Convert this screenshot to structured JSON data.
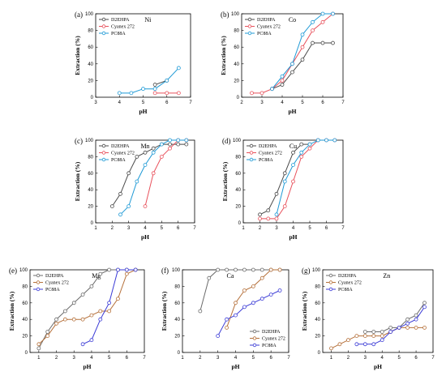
{
  "colors": {
    "D2EHPA": "#4a4a4a",
    "Cyanex 272": "#e8505b",
    "PC88A": "#1f9ad6"
  },
  "chart_data": [
    {
      "id": "ni",
      "panel": "(a)",
      "label": "Ni",
      "type": "line",
      "xlabel": "pH",
      "ylabel": "Extraction (%)",
      "xlim": [
        3,
        7
      ],
      "ylim": [
        0,
        100
      ],
      "xticks": [
        3,
        4,
        5,
        6,
        7
      ],
      "yticks": [
        0,
        20,
        40,
        60,
        80,
        100
      ],
      "series": [
        {
          "name": "D2EHPA",
          "color": "#4a4a4a",
          "x": [
            5.5,
            6.0
          ],
          "y": [
            15,
            20
          ]
        },
        {
          "name": "Cyanex 272",
          "color": "#e8505b",
          "x": [
            5.5,
            6.0,
            6.5
          ],
          "y": [
            5,
            5,
            5
          ]
        },
        {
          "name": "PC88A",
          "color": "#1f9ad6",
          "x": [
            4.0,
            4.5,
            5.0,
            5.5,
            6.0,
            6.5
          ],
          "y": [
            5,
            5,
            10,
            10,
            20,
            35
          ]
        }
      ]
    },
    {
      "id": "co",
      "panel": "(b)",
      "label": "Co",
      "type": "line",
      "xlabel": "pH",
      "ylabel": "Extraction (%)",
      "xlim": [
        2,
        7
      ],
      "ylim": [
        0,
        100
      ],
      "xticks": [
        2,
        3,
        4,
        5,
        6,
        7
      ],
      "yticks": [
        0,
        20,
        40,
        60,
        80,
        100
      ],
      "series": [
        {
          "name": "D2EHPA",
          "color": "#4a4a4a",
          "x": [
            3.5,
            4.0,
            4.5,
            5.0,
            5.5,
            6.0,
            6.5
          ],
          "y": [
            10,
            15,
            30,
            45,
            65,
            65,
            65
          ]
        },
        {
          "name": "Cyanex 272",
          "color": "#e8505b",
          "x": [
            2.5,
            3.0,
            3.5,
            4.0,
            4.5,
            5.0,
            5.5,
            6.0,
            6.5
          ],
          "y": [
            5,
            5,
            10,
            20,
            40,
            60,
            80,
            90,
            100
          ]
        },
        {
          "name": "PC88A",
          "color": "#1f9ad6",
          "x": [
            3.5,
            4.0,
            4.5,
            5.0,
            5.5,
            6.0,
            6.5
          ],
          "y": [
            10,
            25,
            40,
            75,
            90,
            100,
            100
          ]
        }
      ]
    },
    {
      "id": "mn",
      "panel": "(c)",
      "label": "Mn",
      "type": "line",
      "xlabel": "pH",
      "ylabel": "Extraction (%)",
      "xlim": [
        1,
        7
      ],
      "ylim": [
        0,
        100
      ],
      "xticks": [
        1,
        2,
        3,
        4,
        5,
        6,
        7
      ],
      "yticks": [
        0,
        20,
        40,
        60,
        80,
        100
      ],
      "series": [
        {
          "name": "D2EHPA",
          "color": "#4a4a4a",
          "x": [
            2.0,
            2.5,
            3.0,
            3.5,
            4.0,
            4.5,
            5.0,
            5.5,
            6.0,
            6.5
          ],
          "y": [
            20,
            35,
            60,
            80,
            85,
            90,
            95,
            95,
            95,
            95
          ]
        },
        {
          "name": "Cyanex 272",
          "color": "#e8505b",
          "x": [
            4.0,
            4.5,
            5.0,
            5.5,
            6.0,
            6.5
          ],
          "y": [
            20,
            60,
            80,
            90,
            100,
            100
          ]
        },
        {
          "name": "PC88A",
          "color": "#1f9ad6",
          "x": [
            2.5,
            3.0,
            3.5,
            4.0,
            4.5,
            5.0,
            5.5,
            6.0,
            6.5
          ],
          "y": [
            10,
            20,
            50,
            70,
            85,
            95,
            100,
            100,
            100
          ]
        }
      ]
    },
    {
      "id": "cu",
      "panel": "(d)",
      "label": "Cu",
      "type": "line",
      "xlabel": "pH",
      "ylabel": "Extraction (%)",
      "xlim": [
        1,
        7
      ],
      "ylim": [
        0,
        100
      ],
      "xticks": [
        1,
        2,
        3,
        4,
        5,
        6,
        7
      ],
      "yticks": [
        0,
        20,
        40,
        60,
        80,
        100
      ],
      "series": [
        {
          "name": "D2EHPA",
          "color": "#4a4a4a",
          "x": [
            2.0,
            2.5,
            3.0,
            3.5,
            4.0,
            4.5,
            5.0
          ],
          "y": [
            10,
            15,
            35,
            60,
            85,
            95,
            95
          ]
        },
        {
          "name": "Cyanex 272",
          "color": "#e8505b",
          "x": [
            2.0,
            2.5,
            3.0,
            3.5,
            4.0,
            4.5,
            5.0,
            5.5,
            6.0,
            6.5
          ],
          "y": [
            5,
            5,
            5,
            20,
            50,
            80,
            90,
            100,
            100,
            100
          ]
        },
        {
          "name": "PC88A",
          "color": "#1f9ad6",
          "x": [
            3.0,
            3.5,
            4.0,
            4.5,
            5.0,
            5.5,
            6.0,
            6.5
          ],
          "y": [
            10,
            50,
            70,
            85,
            95,
            100,
            100,
            100
          ]
        }
      ]
    },
    {
      "id": "mg",
      "panel": "(e)",
      "label": "Mg",
      "type": "line",
      "xlabel": "pH",
      "ylabel": "Extraction (%)",
      "xlim": [
        0.5,
        7
      ],
      "ylim": [
        0,
        100
      ],
      "xticks": [
        1,
        2,
        3,
        4,
        5,
        6,
        7
      ],
      "yticks": [
        0,
        20,
        40,
        60,
        80,
        100
      ],
      "series": [
        {
          "name": "D2EHPA",
          "color": "#6b6b6b",
          "x": [
            1.0,
            1.5,
            2.0,
            2.5,
            3.0,
            3.5,
            4.0,
            4.5,
            5.0,
            5.5,
            6.0,
            6.5
          ],
          "y": [
            5,
            25,
            40,
            50,
            60,
            70,
            80,
            95,
            100,
            100,
            100,
            100
          ]
        },
        {
          "name": "Cyanex 272",
          "color": "#b5703a",
          "x": [
            1.0,
            1.5,
            2.0,
            2.5,
            3.0,
            3.5,
            4.0,
            4.5,
            5.0,
            5.5,
            6.0,
            6.5
          ],
          "y": [
            10,
            20,
            35,
            40,
            40,
            40,
            45,
            50,
            50,
            65,
            95,
            100
          ]
        },
        {
          "name": "PC88A",
          "color": "#3b3bd6",
          "x": [
            3.5,
            4.0,
            4.5,
            5.0,
            5.5,
            6.0,
            6.5
          ],
          "y": [
            10,
            15,
            40,
            60,
            100,
            100,
            100
          ]
        }
      ]
    },
    {
      "id": "ca",
      "panel": "(f)",
      "label": "Ca",
      "type": "line",
      "xlabel": "pH",
      "ylabel": "Extraction (%)",
      "xlim": [
        1,
        7
      ],
      "ylim": [
        0,
        100
      ],
      "xticks": [
        1,
        2,
        3,
        4,
        5,
        6,
        7
      ],
      "yticks": [
        0,
        20,
        40,
        60,
        80,
        100
      ],
      "series": [
        {
          "name": "D2EHPA",
          "color": "#6b6b6b",
          "x": [
            2.0,
            2.5,
            3.0,
            3.5,
            4.0,
            4.5,
            5.0,
            5.5,
            6.0,
            6.5
          ],
          "y": [
            50,
            90,
            100,
            100,
            100,
            100,
            100,
            100,
            100,
            100
          ]
        },
        {
          "name": "Cyanex 272",
          "color": "#b5703a",
          "x": [
            3.5,
            4.0,
            4.5,
            5.0,
            5.5,
            6.0,
            6.5
          ],
          "y": [
            30,
            60,
            75,
            80,
            90,
            100,
            100
          ]
        },
        {
          "name": "PC88A",
          "color": "#3b3bd6",
          "x": [
            3.0,
            3.5,
            4.0,
            4.5,
            5.0,
            5.5,
            6.0,
            6.5
          ],
          "y": [
            20,
            40,
            45,
            55,
            60,
            65,
            70,
            75
          ]
        }
      ]
    },
    {
      "id": "zn",
      "panel": "(g)",
      "label": "Zn",
      "type": "line",
      "xlabel": "pH",
      "ylabel": "Extraction (%)",
      "xlim": [
        0.5,
        7
      ],
      "ylim": [
        0,
        100
      ],
      "xticks": [
        1,
        2,
        3,
        4,
        5,
        6,
        7
      ],
      "yticks": [
        0,
        20,
        40,
        60,
        80,
        100
      ],
      "series": [
        {
          "name": "D2EHPA",
          "color": "#6b6b6b",
          "x": [
            3.0,
            3.5,
            4.0,
            4.5,
            5.0,
            5.5,
            6.0,
            6.5
          ],
          "y": [
            25,
            25,
            25,
            30,
            30,
            40,
            45,
            60
          ]
        },
        {
          "name": "Cyanex 272",
          "color": "#b5703a",
          "x": [
            1.0,
            1.5,
            2.0,
            2.5,
            3.0,
            3.5,
            4.0,
            4.5,
            5.0,
            5.5,
            6.0,
            6.5
          ],
          "y": [
            5,
            10,
            15,
            20,
            20,
            20,
            20,
            25,
            30,
            30,
            30,
            30
          ]
        },
        {
          "name": "PC88A",
          "color": "#3b3bd6",
          "x": [
            2.5,
            3.0,
            3.5,
            4.0,
            4.5,
            5.0,
            5.5,
            6.0,
            6.5
          ],
          "y": [
            10,
            10,
            10,
            15,
            25,
            30,
            35,
            40,
            55
          ]
        }
      ]
    }
  ]
}
